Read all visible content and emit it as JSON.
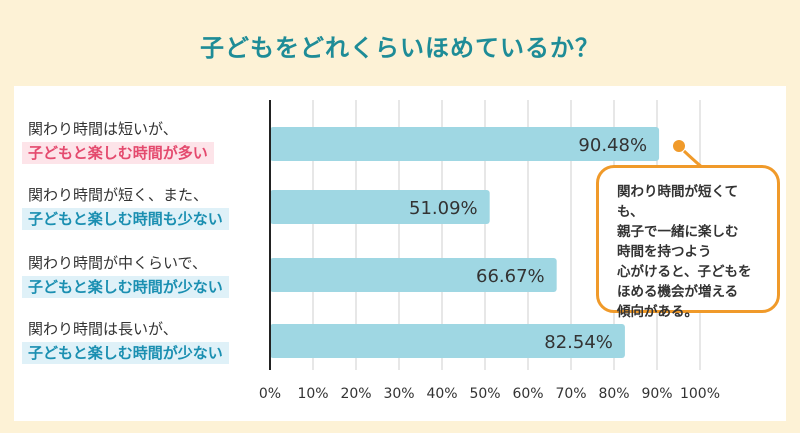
{
  "title": "子どもをどれくらいほめているか？",
  "labels": [
    {
      "line1": "関わり時間は短いが、",
      "line2": "子どもと楽しむ時間が多い",
      "style": "pink"
    },
    {
      "line1": "関わり時間が短く、また、",
      "line2": "子どもと楽しむ時間も少ない",
      "style": "blue"
    },
    {
      "line1": "関わり時間が中くらいで、",
      "line2": "子どもと楽しむ時間が少ない",
      "style": "blue"
    },
    {
      "line1": "関わり時間は長いが、",
      "line2": "子どもと楽しむ時間が少ない",
      "style": "blue"
    }
  ],
  "callout": {
    "lines": [
      "関わり時間が短くても、",
      "親子で一緒に楽しむ",
      "時間を持つよう",
      "心がけると、子どもを",
      "ほめる機会が増える",
      "傾向がある。"
    ]
  },
  "colors": {
    "bar": "#9fd7e3",
    "accent": "#f09a2a",
    "title": "#1e8c97",
    "background": "#fdf2d6"
  },
  "chart_data": {
    "type": "bar",
    "orientation": "horizontal",
    "categories": [
      "関わり時間は短いが、子どもと楽しむ時間が多い",
      "関わり時間が短く、また、子どもと楽しむ時間も少ない",
      "関わり時間が中くらいで、子どもと楽しむ時間が少ない",
      "関わり時間は長いが、子どもと楽しむ時間が少ない"
    ],
    "values": [
      90.48,
      51.09,
      66.67,
      82.54
    ],
    "value_labels": [
      "90.48%",
      "51.09%",
      "66.67%",
      "82.54%"
    ],
    "xlim": [
      0,
      100
    ],
    "x_ticks": [
      "0%",
      "10%",
      "20%",
      "30%",
      "40%",
      "50%",
      "60%",
      "70%",
      "80%",
      "90%",
      "100%"
    ],
    "grid": true
  }
}
